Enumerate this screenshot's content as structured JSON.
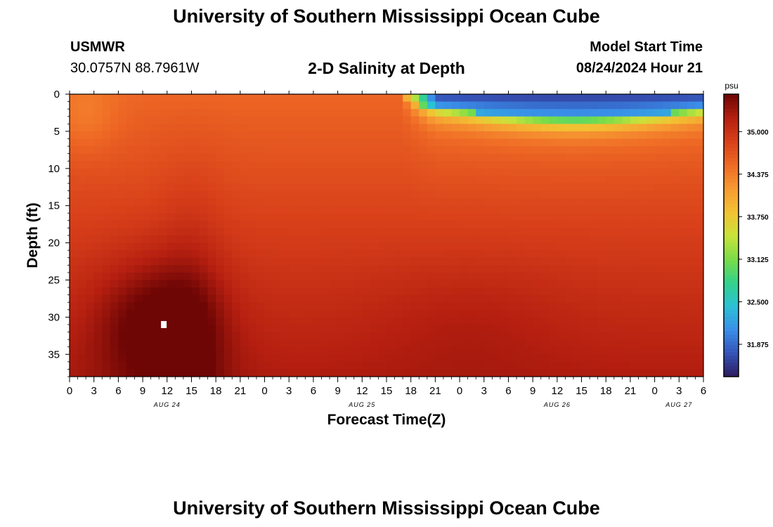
{
  "header": {
    "title": "University of Southern Mississippi Ocean Cube",
    "station": "USMWR",
    "coords": "30.0757N  88.7961W",
    "subtitle": "2-D Salinity at Depth",
    "start_label": "Model Start Time",
    "start_value": "08/24/2024 Hour 21"
  },
  "footer": {
    "title": "University of Southern Mississippi Ocean Cube"
  },
  "chart_data": {
    "type": "heatmap",
    "xlabel": "Forecast Time(Z)",
    "ylabel": "Depth (ft)",
    "x_tick_labels": [
      "0",
      "3",
      "6",
      "9",
      "12",
      "15",
      "18",
      "21",
      "0",
      "3",
      "6",
      "9",
      "12",
      "15",
      "18",
      "21",
      "0",
      "3",
      "6",
      "9",
      "12",
      "15",
      "18",
      "21",
      "0",
      "3",
      "6"
    ],
    "date_labels": [
      {
        "label": "AUG 24",
        "hour_index": 12
      },
      {
        "label": "AUG 25",
        "hour_index": 36
      },
      {
        "label": "AUG 26",
        "hour_index": 60
      },
      {
        "label": "AUG 27",
        "hour_index": 75
      }
    ],
    "x_hours": [
      0,
      78
    ],
    "ylim": [
      0,
      38
    ],
    "y_ticks": [
      0,
      5,
      10,
      15,
      20,
      25,
      30,
      35
    ],
    "colorbar": {
      "unit": "psu",
      "ticks": [
        "35.000",
        "34.375",
        "33.750",
        "33.125",
        "32.500",
        "31.875"
      ],
      "tick_values": [
        35.0,
        34.375,
        33.75,
        33.125,
        32.5,
        31.875
      ],
      "range": [
        31.4,
        35.55
      ],
      "colors": [
        "#2c1b5e",
        "#3553b8",
        "#3a8ee8",
        "#2bc1d6",
        "#33d18a",
        "#7bdc48",
        "#c9e23a",
        "#f2c233",
        "#f79a33",
        "#ef6a25",
        "#d8401a",
        "#b51f10",
        "#6e0605"
      ]
    },
    "features": [
      {
        "description": "fresh surface layer",
        "hour_start": 44,
        "hour_end": 78,
        "depth_max": 5,
        "salinity_min": 31.6
      },
      {
        "description": "high salinity core",
        "hour": 11,
        "depth": 31,
        "salinity": 35.5
      }
    ]
  }
}
